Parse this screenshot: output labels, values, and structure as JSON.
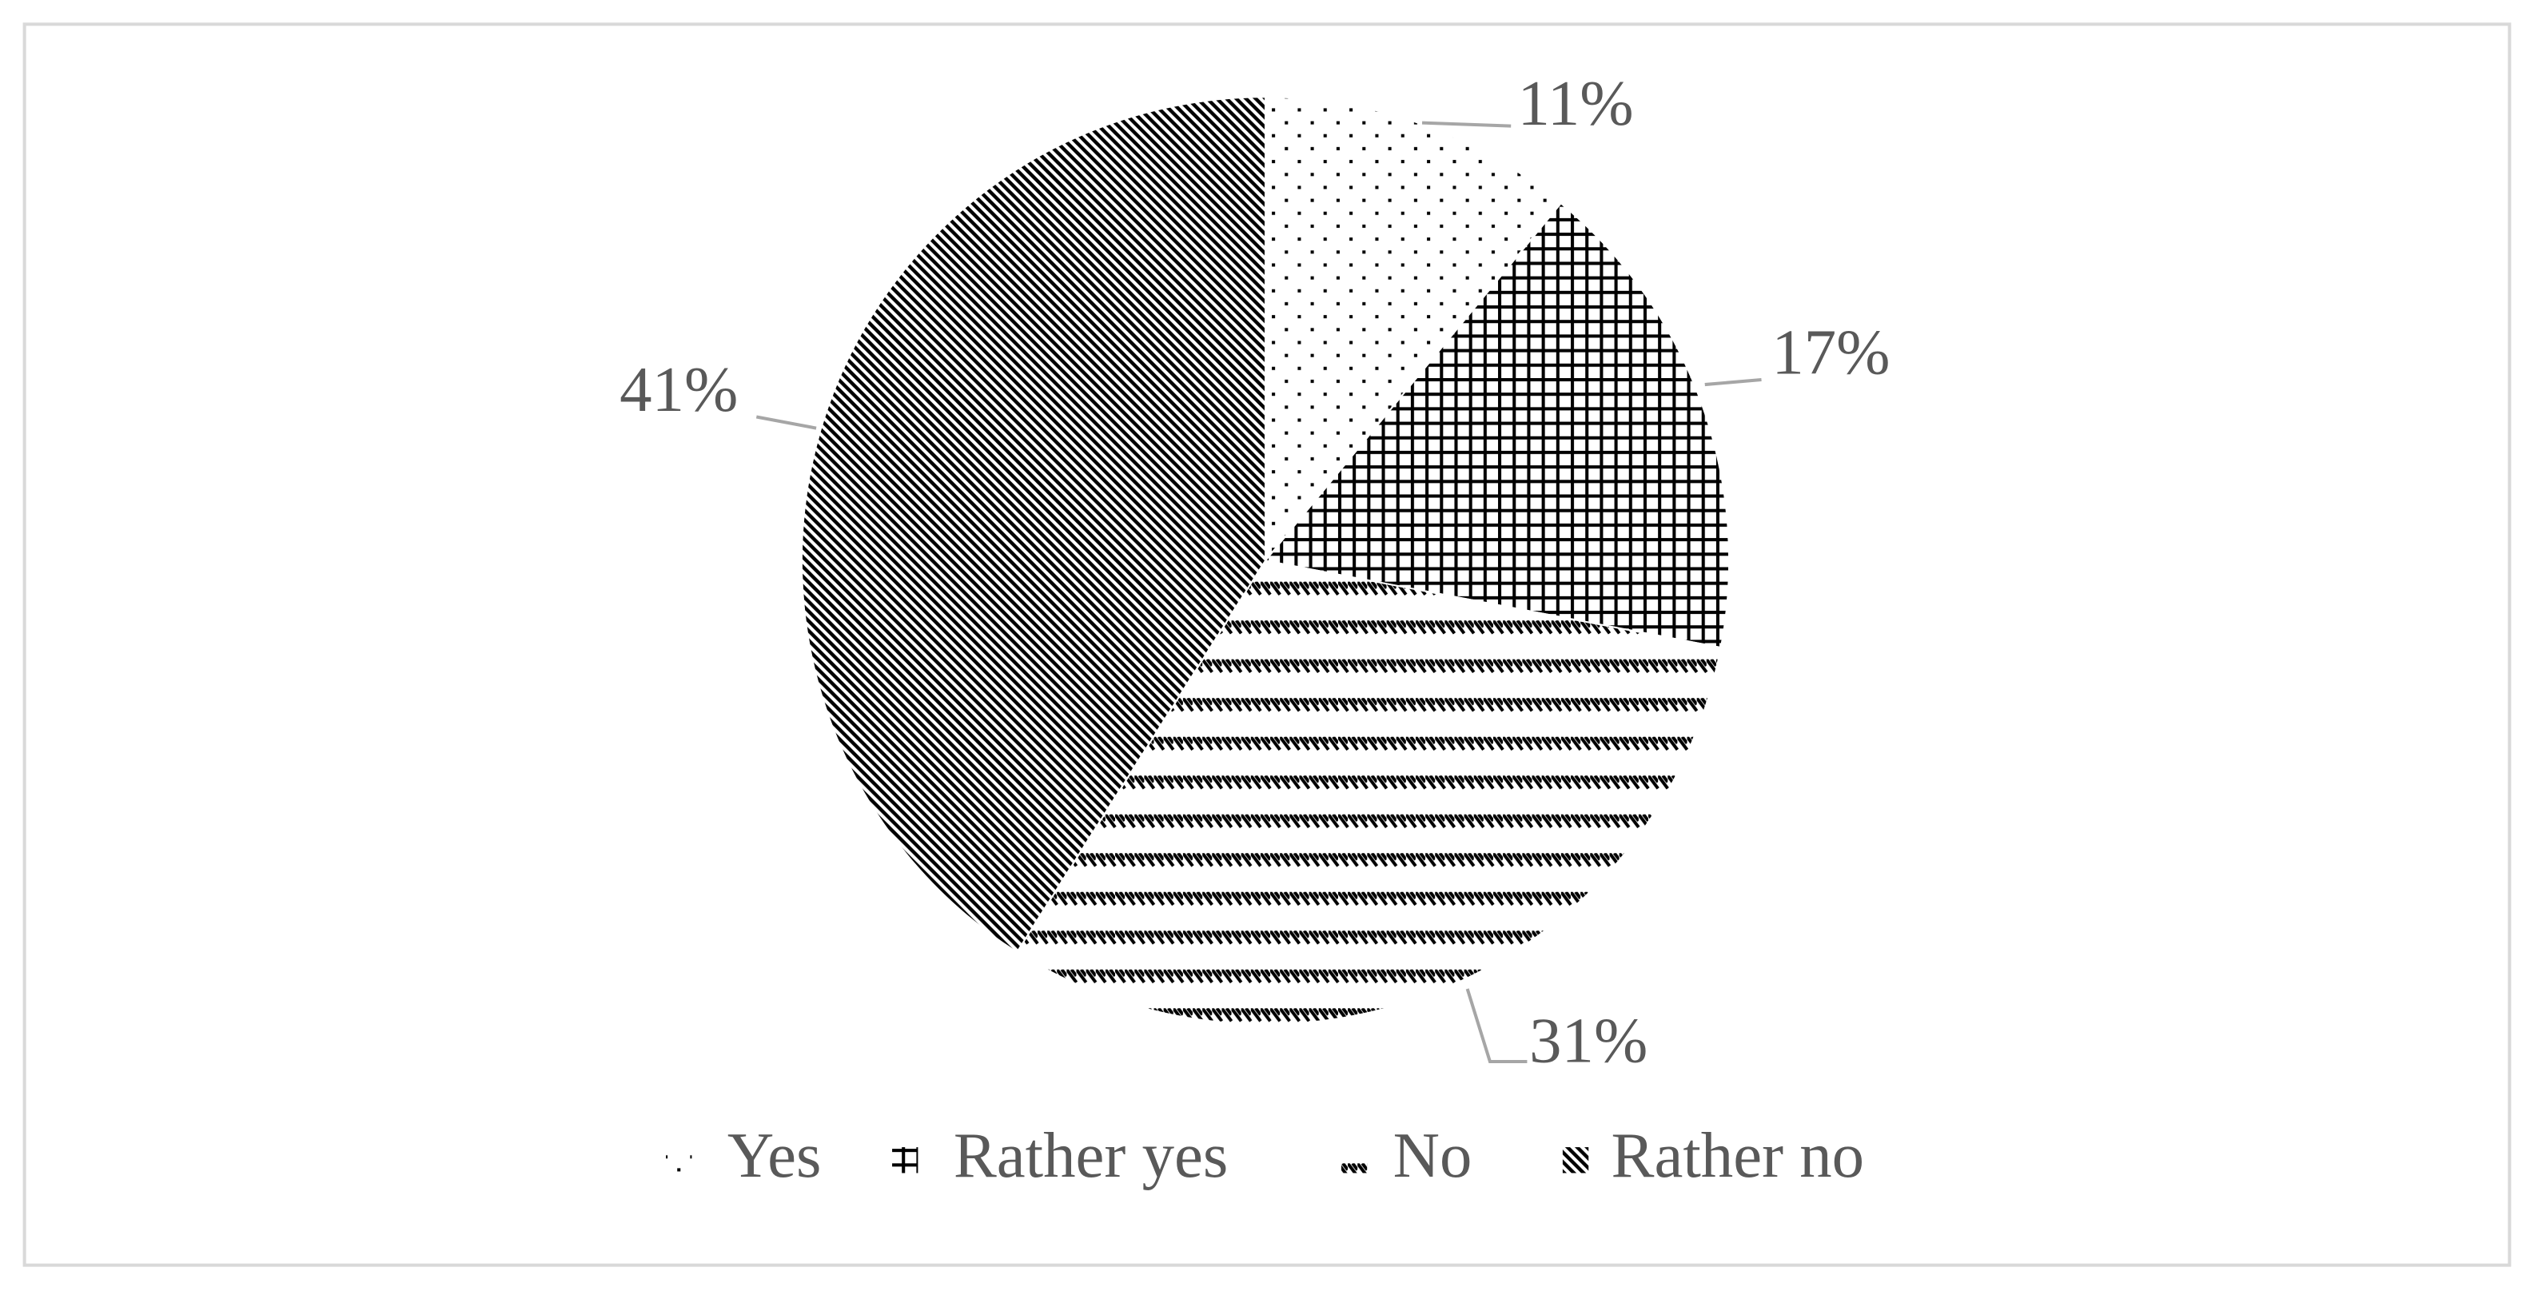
{
  "chart_data": {
    "type": "pie",
    "categories": [
      "Yes",
      "Rather yes",
      "No",
      "Rather no"
    ],
    "values": [
      11,
      17,
      31,
      41
    ],
    "value_labels": [
      "11%",
      "17%",
      "31%",
      "41%"
    ]
  }
}
